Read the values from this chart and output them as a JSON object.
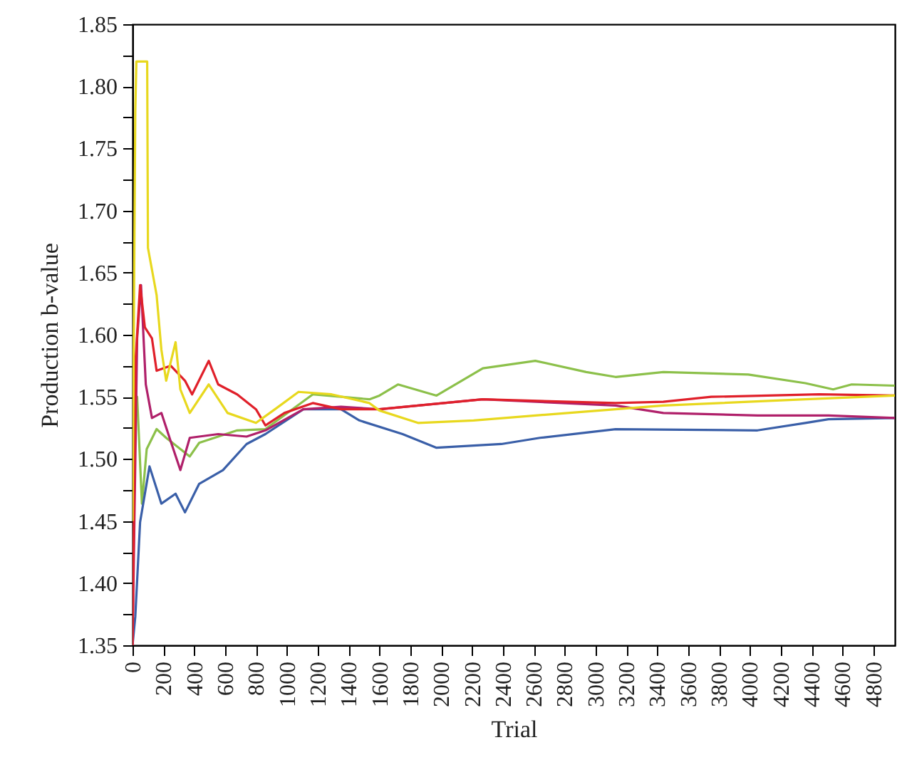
{
  "chart_data": {
    "type": "line",
    "xlabel": "Trial",
    "ylabel": "Production b-value",
    "grid": false,
    "marker": "none",
    "line_style": "solid",
    "xlim": [
      0,
      4940
    ],
    "xticks": [
      0,
      200,
      400,
      600,
      800,
      1000,
      1200,
      1400,
      1600,
      1800,
      2000,
      2200,
      2400,
      2600,
      2800,
      3000,
      3200,
      3400,
      3600,
      3800,
      4000,
      4200,
      4400,
      4600,
      4800
    ],
    "ylim": [
      1.35,
      1.85
    ],
    "yticks": [
      {
        "value": 1.35,
        "label": "1.35"
      },
      {
        "value": 1.375,
        "label": null
      },
      {
        "value": 1.4,
        "label": "1.40"
      },
      {
        "value": 1.425,
        "label": null
      },
      {
        "value": 1.45,
        "label": "1.45"
      },
      {
        "value": 1.475,
        "label": null
      },
      {
        "value": 1.5,
        "label": "1.50"
      },
      {
        "value": 1.525,
        "label": null
      },
      {
        "value": 1.55,
        "label": "1.55"
      },
      {
        "value": 1.575,
        "label": null
      },
      {
        "value": 1.6,
        "label": "1.60"
      },
      {
        "value": 1.625,
        "label": null
      },
      {
        "value": 1.65,
        "label": "1.65"
      },
      {
        "value": 1.675,
        "label": null
      },
      {
        "value": 1.7,
        "label": "1.70"
      },
      {
        "value": 1.725,
        "label": null
      },
      {
        "value": 1.75,
        "label": "1.75"
      },
      {
        "value": 1.775,
        "label": null
      },
      {
        "value": 1.8,
        "label": "1.80"
      },
      {
        "value": 1.825,
        "label": null
      },
      {
        "value": 1.85,
        "label": "1.85"
      }
    ],
    "series": [
      {
        "color": "#8cc04a",
        "x": [
          0,
          30,
          61,
          92,
          156,
          218,
          371,
          432,
          678,
          861,
          1168,
          1535,
          1600,
          1720,
          1970,
          2270,
          2610,
          2940,
          3130,
          3440,
          3990,
          4360,
          4540,
          4660,
          4940
        ],
        "values": [
          1.5,
          1.55,
          1.464,
          1.508,
          1.524,
          1.517,
          1.502,
          1.513,
          1.523,
          1.524,
          1.552,
          1.548,
          1.551,
          1.56,
          1.551,
          1.573,
          1.579,
          1.57,
          1.566,
          1.57,
          1.568,
          1.561,
          1.556,
          1.56,
          1.559
        ]
      },
      {
        "color": "#3a5fa8",
        "x": [
          0,
          18,
          49,
          110,
          187,
          279,
          340,
          432,
          586,
          739,
          861,
          1107,
          1351,
          1470,
          1750,
          1970,
          2390,
          2640,
          3130,
          4050,
          4360,
          4510,
          4940
        ],
        "values": [
          1.35,
          1.373,
          1.449,
          1.494,
          1.464,
          1.472,
          1.457,
          1.48,
          1.491,
          1.512,
          1.52,
          1.54,
          1.54,
          1.531,
          1.52,
          1.509,
          1.512,
          1.517,
          1.524,
          1.523,
          1.529,
          1.532,
          1.533
        ]
      },
      {
        "color": "#b0206a",
        "x": [
          0,
          30,
          55,
          86,
          126,
          187,
          248,
          310,
          371,
          555,
          739,
          861,
          1107,
          1351,
          1600,
          2270,
          3130,
          3440,
          4050,
          4510,
          4940
        ],
        "values": [
          1.35,
          1.597,
          1.64,
          1.56,
          1.533,
          1.537,
          1.514,
          1.491,
          1.517,
          1.52,
          1.518,
          1.523,
          1.54,
          1.542,
          1.54,
          1.548,
          1.543,
          1.537,
          1.535,
          1.535,
          1.533
        ]
      },
      {
        "color": "#e0202a",
        "x": [
          0,
          20,
          49,
          80,
          126,
          156,
          248,
          340,
          386,
          494,
          555,
          678,
          800,
          861,
          984,
          1168,
          1351,
          1600,
          2270,
          3130,
          3440,
          3750,
          4450,
          4940
        ],
        "values": [
          1.35,
          1.58,
          1.64,
          1.606,
          1.597,
          1.571,
          1.575,
          1.563,
          1.552,
          1.579,
          1.56,
          1.552,
          1.54,
          1.527,
          1.537,
          1.545,
          1.54,
          1.54,
          1.548,
          1.545,
          1.546,
          1.55,
          1.552,
          1.551
        ]
      },
      {
        "color": "#e8d81e",
        "x": [
          0,
          18,
          25,
          95,
          100,
          156,
          187,
          218,
          279,
          310,
          371,
          494,
          616,
          800,
          923,
          1076,
          1290,
          1535,
          1600,
          1850,
          2210,
          2820,
          3440,
          4360,
          4940
        ],
        "values": [
          1.45,
          1.78,
          1.82,
          1.82,
          1.67,
          1.632,
          1.588,
          1.563,
          1.594,
          1.556,
          1.537,
          1.56,
          1.537,
          1.529,
          1.54,
          1.554,
          1.552,
          1.545,
          1.539,
          1.529,
          1.531,
          1.537,
          1.543,
          1.548,
          1.551
        ]
      }
    ]
  }
}
